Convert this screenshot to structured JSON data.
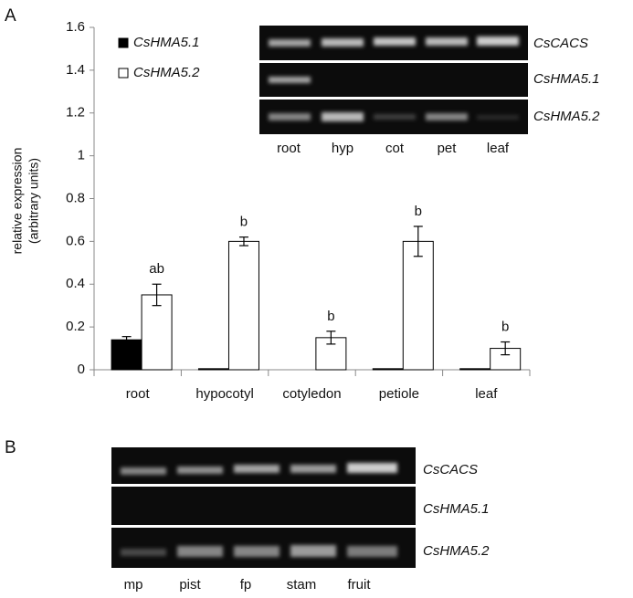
{
  "panel_labels": [
    "A",
    "B"
  ],
  "chart_data": {
    "type": "bar",
    "ylabel": [
      "relative expression",
      "(arbitrary units)"
    ],
    "categories": [
      "root",
      "hypocotyl",
      "cotyledon",
      "petiole",
      "leaf"
    ],
    "series": [
      {
        "name": "CsHMA5.1",
        "color": "#000000",
        "values": [
          0.14,
          0.005,
          0,
          0.005,
          0.005
        ],
        "errors": [
          0.015,
          0,
          0,
          0,
          0
        ]
      },
      {
        "name": "CsHMA5.2",
        "color": "#ffffff",
        "values": [
          0.35,
          0.6,
          0.15,
          0.6,
          0.1
        ],
        "errors": [
          0.05,
          0.02,
          0.03,
          0.07,
          0.03
        ]
      }
    ],
    "annotations": [
      "ab",
      "b",
      "b",
      "b",
      "b"
    ],
    "ylim": [
      0,
      1.6
    ],
    "yticks": [
      0,
      0.2,
      0.4,
      0.6,
      0.8,
      1,
      1.2,
      1.4,
      1.6
    ],
    "grid": false,
    "legend": "top-left"
  },
  "gel_a": {
    "genes": [
      "CsCACS",
      "CsHMA5.1",
      "CsHMA5.2"
    ],
    "lanes": [
      "root",
      "hyp",
      "cot",
      "pet",
      "leaf"
    ]
  },
  "gel_b": {
    "genes": [
      "CsCACS",
      "CsHMA5.1",
      "CsHMA5.2"
    ],
    "lanes": [
      "mp",
      "pist",
      "fp",
      "stam",
      "fruit"
    ]
  }
}
